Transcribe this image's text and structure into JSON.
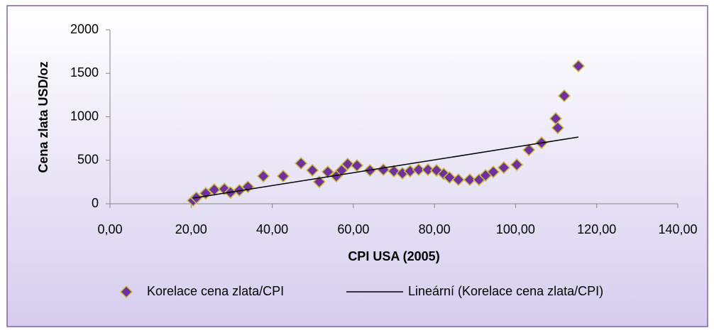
{
  "chart_data": {
    "type": "scatter",
    "x_label": "CPI USA (2005)",
    "y_label": "Cena zlata USD/oz",
    "xlim": [
      0,
      140
    ],
    "xticks": [
      {
        "value": 0,
        "label": "0,00"
      },
      {
        "value": 20,
        "label": "20,00"
      },
      {
        "value": 40,
        "label": "40,00"
      },
      {
        "value": 60,
        "label": "60,00"
      },
      {
        "value": 80,
        "label": "80,00"
      },
      {
        "value": 100,
        "label": "100,00"
      },
      {
        "value": 120,
        "label": "120,00"
      },
      {
        "value": 140,
        "label": "140,00"
      }
    ],
    "ylim": [
      0,
      2000
    ],
    "yticks": [
      0,
      500,
      1000,
      1500,
      2000
    ],
    "grid": false,
    "legend": "bottom",
    "series": [
      {
        "name": "Korelace cena zlata/CPI",
        "type": "scatter",
        "color": "#7030a0",
        "edge_color": "#c8c03a",
        "x": [
          20.5,
          21.3,
          23.6,
          25.7,
          28.2,
          29.7,
          31.9,
          34.0,
          37.8,
          42.7,
          47.1,
          49.9,
          51.6,
          53.7,
          55.8,
          57.1,
          58.6,
          60.9,
          64.1,
          67.4,
          70.0,
          72.1,
          74.0,
          76.1,
          78.4,
          80.5,
          82.3,
          83.7,
          85.9,
          88.7,
          91.0,
          92.6,
          94.5,
          97.1,
          100.3,
          103.3,
          106.4,
          109.9,
          110.4,
          112.0,
          115.5
        ],
        "values": [
          38,
          70,
          120,
          163,
          170,
          130,
          155,
          195,
          318,
          318,
          465,
          385,
          253,
          367,
          318,
          384,
          457,
          440,
          384,
          392,
          375,
          351,
          375,
          392,
          392,
          384,
          343,
          302,
          277,
          277,
          277,
          327,
          367,
          416,
          449,
          620,
          702,
          980,
          873,
          1241,
          1584
        ]
      },
      {
        "name": "Lineární (Korelace cena zlata/CPI)",
        "type": "line",
        "color": "#000000",
        "x": [
          20.5,
          115.5
        ],
        "values": [
          65,
          767
        ]
      }
    ]
  }
}
